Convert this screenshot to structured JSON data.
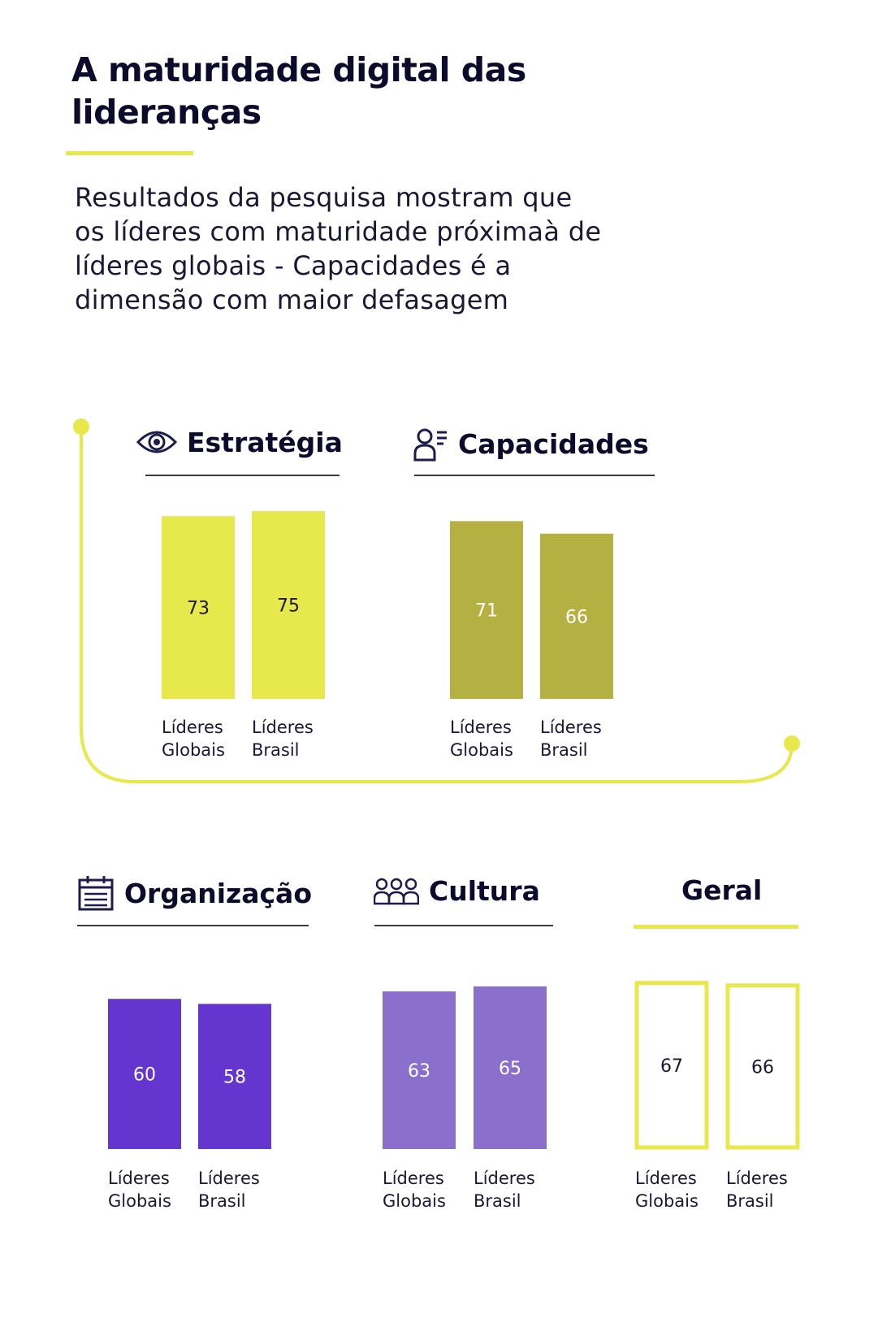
{
  "header": {
    "title": "A maturidade digital das lideranças",
    "subtitle": "Resultados da pesquisa mostram que os líderes com maturidade próximaà de líderes globais - Capacidades é a dimensão com maior defasagem"
  },
  "colors": {
    "accent": "#e6e84c",
    "estrategia": "#e6e84c",
    "capacidades": "#b4b041",
    "organizacao": "#6535cf",
    "cultura": "#8a70cc",
    "geral_outline": "#e6e84c",
    "text": "#0d0b2b"
  },
  "chart_data": [
    {
      "type": "bar",
      "title": "Estratégia",
      "icon": "eye-icon",
      "categories": [
        "Líderes Globais",
        "Líderes Brasil"
      ],
      "values": [
        73,
        75
      ]
    },
    {
      "type": "bar",
      "title": "Capacidades",
      "icon": "user-list-icon",
      "categories": [
        "Líderes Globais",
        "Líderes Brasil"
      ],
      "values": [
        71,
        66
      ]
    },
    {
      "type": "bar",
      "title": "Organização",
      "icon": "calendar-icon",
      "categories": [
        "Líderes Globais",
        "Líderes Brasil"
      ],
      "values": [
        60,
        58
      ]
    },
    {
      "type": "bar",
      "title": "Cultura",
      "icon": "group-icon",
      "categories": [
        "Líderes Globais",
        "Líderes Brasil"
      ],
      "values": [
        63,
        65
      ]
    },
    {
      "type": "bar",
      "title": "Geral",
      "categories": [
        "Líderes Globais",
        "Líderes Brasil"
      ],
      "values": [
        67,
        66
      ]
    }
  ]
}
